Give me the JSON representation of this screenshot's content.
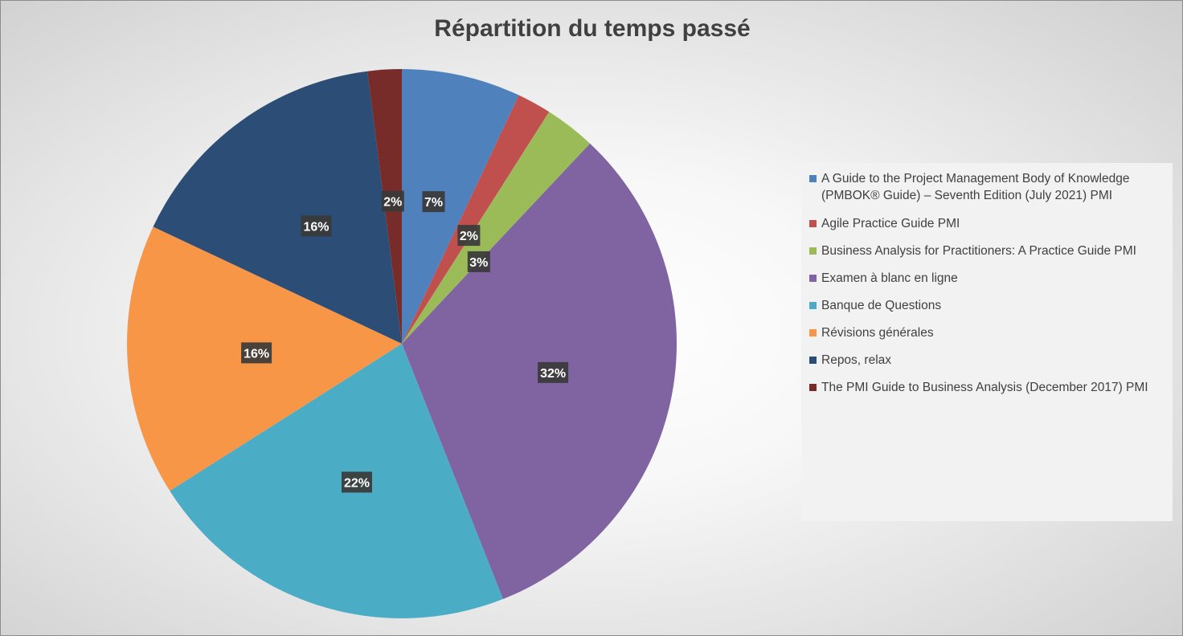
{
  "chart_data": {
    "type": "pie",
    "title": "Répartition du temps passé",
    "slices": [
      {
        "label": "A Guide to the Project Management Body of Knowledge (PMBOK® Guide) – Seventh Edition (July 2021) PMI",
        "value": 7,
        "display": "7%",
        "color": "#4f81bd"
      },
      {
        "label": "Agile Practice Guide PMI",
        "value": 2,
        "display": "2%",
        "color": "#c0504d"
      },
      {
        "label": "Business Analysis for Practitioners: A Practice Guide PMI",
        "value": 3,
        "display": "3%",
        "color": "#9bbb59"
      },
      {
        "label": "Examen à blanc en ligne",
        "value": 32,
        "display": "32%",
        "color": "#8064a2"
      },
      {
        "label": "Banque de Questions",
        "value": 22,
        "display": "22%",
        "color": "#4bacc6"
      },
      {
        "label": "Révisions générales",
        "value": 16,
        "display": "16%",
        "color": "#f79646"
      },
      {
        "label": "Repos, relax",
        "value": 16,
        "display": "16%",
        "color": "#2c4d75"
      },
      {
        "label": "The PMI Guide to Business Analysis (December 2017) PMI",
        "value": 2,
        "display": "2%",
        "color": "#772c2a"
      }
    ],
    "legend_position": "right"
  }
}
